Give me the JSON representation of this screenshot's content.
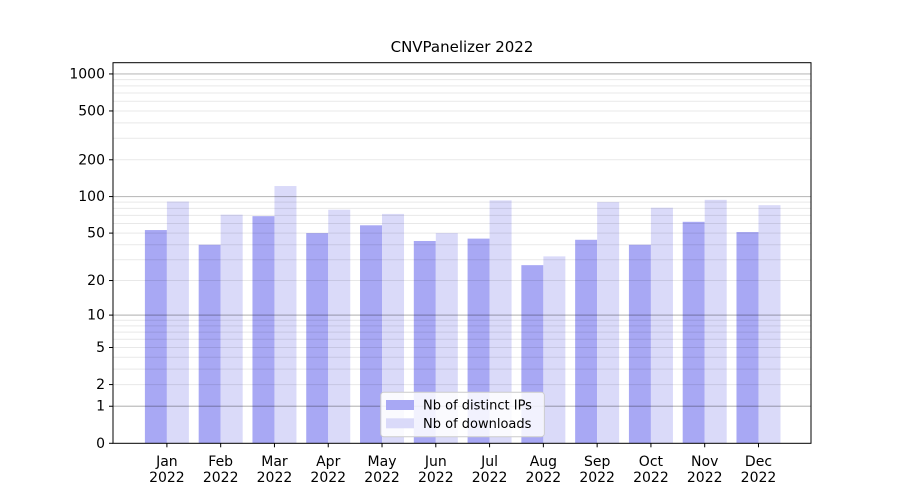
{
  "title": "CNVPanelizer 2022",
  "chart_data": {
    "type": "bar",
    "title": "CNVPanelizer 2022",
    "yscale": "log1p",
    "grid": "on",
    "xlabel": "",
    "ylabel": "",
    "ylim": [
      0,
      1234
    ],
    "y_ticks": [
      0,
      1,
      2,
      5,
      10,
      20,
      50,
      100,
      200,
      500,
      1000
    ],
    "categories": [
      "Jan 2022",
      "Feb 2022",
      "Mar 2022",
      "Apr 2022",
      "May 2022",
      "Jun 2022",
      "Jul 2022",
      "Aug 2022",
      "Sep 2022",
      "Oct 2022",
      "Nov 2022",
      "Dec 2022"
    ],
    "series": [
      {
        "name": "Nb of distinct IPs",
        "color": "#a8a8f4",
        "values": [
          53,
          40,
          69,
          50,
          58,
          43,
          45,
          27,
          44,
          40,
          62,
          51
        ]
      },
      {
        "name": "Nb of downloads",
        "color": "#dadaf9",
        "values": [
          91,
          71,
          122,
          78,
          72,
          50,
          93,
          32,
          90,
          81,
          94,
          85
        ]
      }
    ],
    "legend_position": "lower center"
  },
  "colors": {
    "background": "#ffffff",
    "axis": "#000000",
    "major_gridline": "#bdbdbd",
    "minor_gridline": "#e8e8e8",
    "legend_border": "#cccccc"
  }
}
